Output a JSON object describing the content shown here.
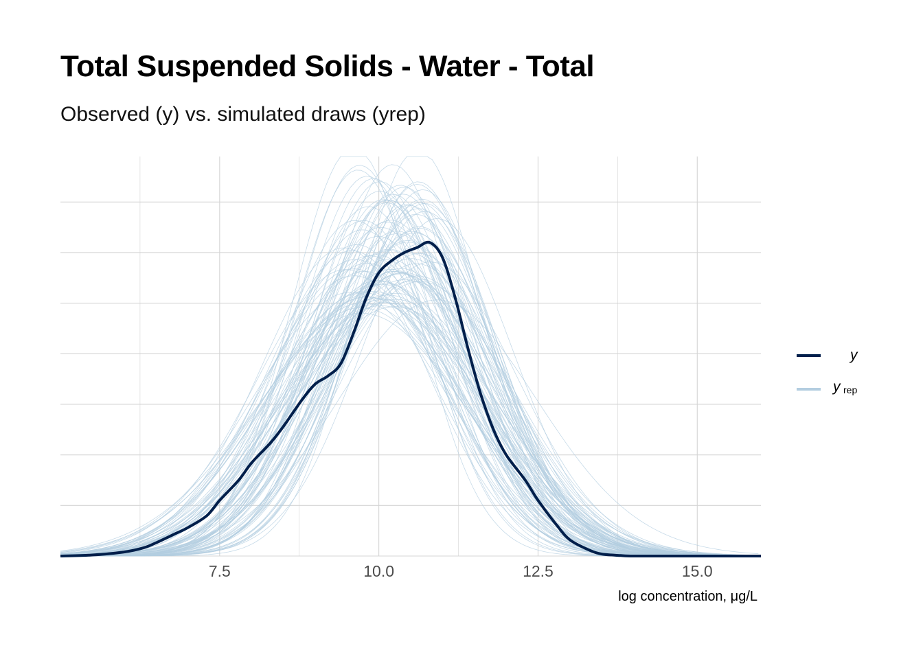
{
  "colors": {
    "observed": "#011f4b",
    "replicated": "#b3cde0",
    "grid": "#d4d4d4"
  },
  "chart_data": {
    "type": "line",
    "title": "Total Suspended Solids - Water - Total",
    "subtitle": "Observed (y) vs. simulated draws (yrep)",
    "xlabel": "log concentration, μg/L",
    "ylabel": "",
    "xlim": [
      5.0,
      16.0
    ],
    "ylim": [
      0,
      0.395
    ],
    "x_ticks": [
      7.5,
      10.0,
      12.5,
      15.0
    ],
    "x_tick_labels": [
      "7.5",
      "10.0",
      "12.5",
      "15.0"
    ],
    "y_ticks_unlabeled": [
      0.05,
      0.1,
      0.15,
      0.2,
      0.25,
      0.3,
      0.35
    ],
    "grid": true,
    "legend_position": "right",
    "legend": [
      {
        "label": "y",
        "sub": "",
        "series": "observed"
      },
      {
        "label": "y",
        "sub": "rep",
        "series": "replicated"
      }
    ],
    "observed_density": {
      "x": [
        5.0,
        5.5,
        6.0,
        6.3,
        6.5,
        6.8,
        7.0,
        7.3,
        7.5,
        7.8,
        8.0,
        8.3,
        8.5,
        8.8,
        9.0,
        9.2,
        9.4,
        9.6,
        9.8,
        10.0,
        10.2,
        10.4,
        10.6,
        10.8,
        11.0,
        11.2,
        11.4,
        11.6,
        11.8,
        12.0,
        12.3,
        12.5,
        12.8,
        13.0,
        13.3,
        13.5,
        13.8,
        14.0,
        14.5,
        15.0,
        16.0
      ],
      "y": [
        0.0,
        0.001,
        0.004,
        0.008,
        0.013,
        0.022,
        0.028,
        0.04,
        0.055,
        0.075,
        0.092,
        0.112,
        0.128,
        0.155,
        0.17,
        0.178,
        0.19,
        0.22,
        0.255,
        0.28,
        0.292,
        0.3,
        0.305,
        0.31,
        0.295,
        0.255,
        0.205,
        0.16,
        0.125,
        0.1,
        0.075,
        0.055,
        0.03,
        0.016,
        0.006,
        0.002,
        0.0005,
        0.0,
        0.0,
        0.0,
        0.0
      ]
    },
    "replicated_draws": {
      "count": 100,
      "shape": "approximately normal densities",
      "mean_range": [
        9.5,
        10.9
      ],
      "sd_range": [
        1.0,
        1.6
      ],
      "peak_range": [
        0.2,
        0.39
      ]
    }
  }
}
